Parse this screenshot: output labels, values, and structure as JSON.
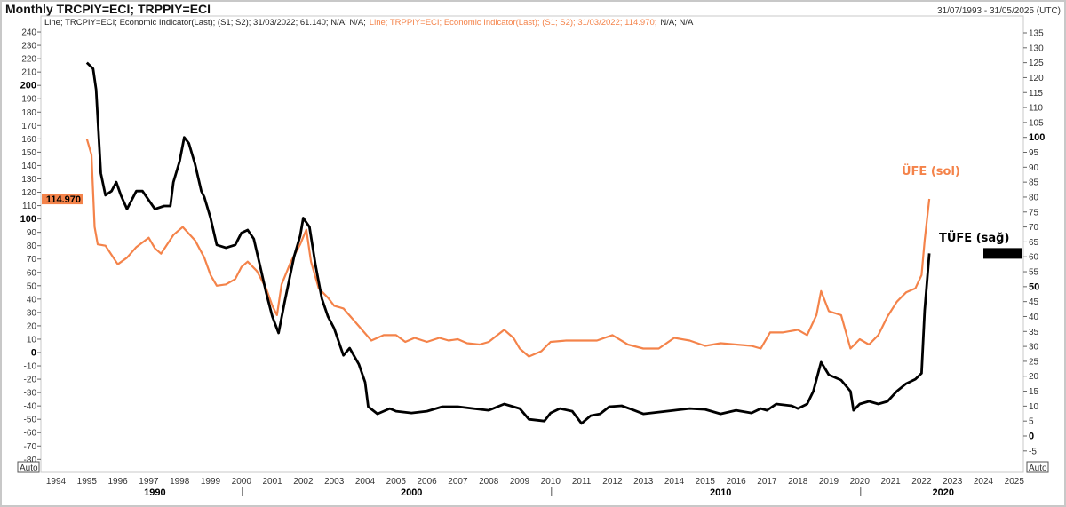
{
  "header": {
    "title": "Monthly TRCPIY=ECI; TRPPIY=ECI",
    "date_range": "31/07/1993 - 31/05/2025 (UTC)"
  },
  "legend": {
    "black_text": "Line; TRCPIY=ECI; Economic Indicator(Last); (S1; S2); 31/03/2022; 61.140; N/A; N/A;",
    "orange_text": "Line; TRPPIY=ECI; Economic Indicator(Last); (S1; S2); 31/03/2022; 114.970;",
    "tail_text": "N/A; N/A"
  },
  "auto_left": "Auto",
  "auto_right": "Auto",
  "colors": {
    "ufe": "#f4834a",
    "tufe": "#000000",
    "grid_border": "#c8c8c8"
  },
  "chart_data": {
    "type": "line",
    "title": "Monthly TRCPIY=ECI; TRPPIY=ECI",
    "xlim": [
      1994,
      2025
    ],
    "x_ticks": [
      "1994",
      "1995",
      "1996",
      "1997",
      "1998",
      "1999",
      "2000",
      "2001",
      "2002",
      "2003",
      "2004",
      "2005",
      "2006",
      "2007",
      "2008",
      "2009",
      "2010",
      "2011",
      "2012",
      "2013",
      "2014",
      "2015",
      "2016",
      "2017",
      "2018",
      "2019",
      "2020",
      "2021",
      "2022",
      "2023",
      "2024",
      "2025"
    ],
    "decade_labels": [
      "1990",
      "2000",
      "2010",
      "2020"
    ],
    "left_axis": {
      "ylim": [
        -80,
        240
      ],
      "ticks": [
        240,
        230,
        220,
        210,
        200,
        190,
        180,
        170,
        160,
        150,
        140,
        130,
        120,
        110,
        100,
        90,
        80,
        70,
        60,
        50,
        40,
        30,
        20,
        10,
        0,
        -10,
        -20,
        -30,
        -40,
        -50,
        -60,
        -70,
        -80
      ],
      "bold": [
        200,
        100,
        0
      ],
      "last_value_label": "114.970"
    },
    "right_axis": {
      "ylim": [
        -8,
        137
      ],
      "ticks": [
        135,
        130,
        125,
        120,
        115,
        110,
        105,
        100,
        95,
        90,
        85,
        80,
        75,
        70,
        65,
        60,
        55,
        50,
        45,
        40,
        35,
        30,
        25,
        20,
        15,
        10,
        5,
        0,
        -5
      ],
      "bold": [
        100,
        50,
        0
      ],
      "last_value_label": "61.140"
    },
    "series": [
      {
        "name": "ÜFE (sol)",
        "axis": "left",
        "color": "#f4834a",
        "points": [
          [
            1995.0,
            160
          ],
          [
            1995.15,
            148
          ],
          [
            1995.25,
            94
          ],
          [
            1995.35,
            81
          ],
          [
            1995.6,
            80
          ],
          [
            1996.0,
            66
          ],
          [
            1996.3,
            71
          ],
          [
            1996.6,
            79
          ],
          [
            1997.0,
            86
          ],
          [
            1997.2,
            78
          ],
          [
            1997.4,
            74
          ],
          [
            1997.8,
            88
          ],
          [
            1998.1,
            94
          ],
          [
            1998.5,
            84
          ],
          [
            1998.8,
            71
          ],
          [
            1999.0,
            58
          ],
          [
            1999.2,
            50
          ],
          [
            1999.5,
            51
          ],
          [
            1999.8,
            55
          ],
          [
            2000.0,
            64
          ],
          [
            2000.2,
            68
          ],
          [
            2000.5,
            61
          ],
          [
            2000.8,
            48
          ],
          [
            2001.0,
            35
          ],
          [
            2001.15,
            28
          ],
          [
            2001.3,
            51
          ],
          [
            2001.6,
            68
          ],
          [
            2001.9,
            81
          ],
          [
            2002.1,
            92
          ],
          [
            2002.25,
            68
          ],
          [
            2002.5,
            48
          ],
          [
            2002.8,
            41
          ],
          [
            2003.0,
            35
          ],
          [
            2003.3,
            33
          ],
          [
            2003.6,
            25
          ],
          [
            2003.9,
            17
          ],
          [
            2004.2,
            9
          ],
          [
            2004.6,
            13
          ],
          [
            2005.0,
            13
          ],
          [
            2005.3,
            8
          ],
          [
            2005.6,
            11
          ],
          [
            2006.0,
            8
          ],
          [
            2006.4,
            11
          ],
          [
            2006.7,
            9
          ],
          [
            2007.0,
            10
          ],
          [
            2007.3,
            7
          ],
          [
            2007.7,
            6
          ],
          [
            2008.0,
            8
          ],
          [
            2008.5,
            17
          ],
          [
            2008.8,
            11
          ],
          [
            2009.0,
            3
          ],
          [
            2009.3,
            -3
          ],
          [
            2009.7,
            1
          ],
          [
            2010.0,
            8
          ],
          [
            2010.5,
            9
          ],
          [
            2011.0,
            9
          ],
          [
            2011.5,
            9
          ],
          [
            2012.0,
            13
          ],
          [
            2012.5,
            6
          ],
          [
            2013.0,
            3
          ],
          [
            2013.5,
            3
          ],
          [
            2014.0,
            11
          ],
          [
            2014.5,
            9
          ],
          [
            2015.0,
            5
          ],
          [
            2015.5,
            7
          ],
          [
            2016.0,
            6
          ],
          [
            2016.5,
            5
          ],
          [
            2016.8,
            3
          ],
          [
            2017.1,
            15
          ],
          [
            2017.5,
            15
          ],
          [
            2018.0,
            17
          ],
          [
            2018.3,
            13
          ],
          [
            2018.6,
            28
          ],
          [
            2018.75,
            46
          ],
          [
            2019.0,
            31
          ],
          [
            2019.4,
            28
          ],
          [
            2019.7,
            3
          ],
          [
            2020.0,
            10
          ],
          [
            2020.3,
            6
          ],
          [
            2020.6,
            13
          ],
          [
            2020.9,
            27
          ],
          [
            2021.2,
            38
          ],
          [
            2021.5,
            45
          ],
          [
            2021.8,
            48
          ],
          [
            2022.0,
            58
          ],
          [
            2022.1,
            84
          ],
          [
            2022.25,
            115
          ]
        ]
      },
      {
        "name": "TÜFE (sağ)",
        "axis": "right",
        "color": "#000000",
        "points": [
          [
            1995.0,
            125
          ],
          [
            1995.2,
            123
          ],
          [
            1995.3,
            116
          ],
          [
            1995.45,
            88
          ],
          [
            1995.6,
            80.6
          ],
          [
            1995.8,
            82
          ],
          [
            1995.95,
            85
          ],
          [
            1996.1,
            80.6
          ],
          [
            1996.3,
            76
          ],
          [
            1996.6,
            82
          ],
          [
            1996.8,
            82
          ],
          [
            1997.0,
            79
          ],
          [
            1997.2,
            76
          ],
          [
            1997.5,
            77
          ],
          [
            1997.7,
            77
          ],
          [
            1997.8,
            85
          ],
          [
            1998.0,
            92
          ],
          [
            1998.15,
            100
          ],
          [
            1998.3,
            98
          ],
          [
            1998.5,
            91
          ],
          [
            1998.7,
            82
          ],
          [
            1998.8,
            80
          ],
          [
            1999.0,
            73
          ],
          [
            1999.2,
            64
          ],
          [
            1999.5,
            63
          ],
          [
            1999.8,
            64
          ],
          [
            2000.0,
            68
          ],
          [
            2000.2,
            69
          ],
          [
            2000.4,
            66
          ],
          [
            2000.6,
            57
          ],
          [
            2000.8,
            48
          ],
          [
            2001.0,
            40
          ],
          [
            2001.2,
            34.5
          ],
          [
            2001.4,
            45
          ],
          [
            2001.7,
            60
          ],
          [
            2001.9,
            67
          ],
          [
            2002.0,
            73
          ],
          [
            2002.2,
            70
          ],
          [
            2002.4,
            57
          ],
          [
            2002.6,
            46
          ],
          [
            2002.8,
            40
          ],
          [
            2003.0,
            36
          ],
          [
            2003.3,
            27
          ],
          [
            2003.5,
            29.4
          ],
          [
            2003.8,
            24
          ],
          [
            2004.0,
            18
          ],
          [
            2004.1,
            9.8
          ],
          [
            2004.4,
            7.4
          ],
          [
            2004.8,
            9.2
          ],
          [
            2005.0,
            8.3
          ],
          [
            2005.5,
            7.7
          ],
          [
            2006.0,
            8.3
          ],
          [
            2006.5,
            9.8
          ],
          [
            2007.0,
            9.8
          ],
          [
            2007.5,
            9.2
          ],
          [
            2008.0,
            8.6
          ],
          [
            2008.5,
            10.7
          ],
          [
            2009.0,
            9.2
          ],
          [
            2009.3,
            5.6
          ],
          [
            2009.8,
            5
          ],
          [
            2010.0,
            7.7
          ],
          [
            2010.3,
            9.2
          ],
          [
            2010.7,
            8.3
          ],
          [
            2011.0,
            4.2
          ],
          [
            2011.3,
            6.8
          ],
          [
            2011.6,
            7.4
          ],
          [
            2011.9,
            9.8
          ],
          [
            2012.3,
            10.1
          ],
          [
            2012.7,
            8.6
          ],
          [
            2013.0,
            7.4
          ],
          [
            2013.5,
            8
          ],
          [
            2014.0,
            8.6
          ],
          [
            2014.5,
            9.2
          ],
          [
            2015.0,
            8.9
          ],
          [
            2015.5,
            7.4
          ],
          [
            2016.0,
            8.6
          ],
          [
            2016.5,
            7.7
          ],
          [
            2016.8,
            9.2
          ],
          [
            2017.0,
            8.6
          ],
          [
            2017.3,
            10.7
          ],
          [
            2017.8,
            10.1
          ],
          [
            2018.0,
            9.2
          ],
          [
            2018.3,
            10.7
          ],
          [
            2018.5,
            15
          ],
          [
            2018.75,
            24.7
          ],
          [
            2019.0,
            20.5
          ],
          [
            2019.4,
            18.7
          ],
          [
            2019.7,
            15
          ],
          [
            2019.8,
            8.6
          ],
          [
            2020.0,
            10.7
          ],
          [
            2020.3,
            11.6
          ],
          [
            2020.6,
            10.7
          ],
          [
            2020.9,
            11.6
          ],
          [
            2021.2,
            15
          ],
          [
            2021.5,
            17.5
          ],
          [
            2021.8,
            19
          ],
          [
            2022.0,
            21
          ],
          [
            2022.1,
            42
          ],
          [
            2022.25,
            61.14
          ]
        ]
      }
    ],
    "annotations": [
      "ÜFE (sol)",
      "TÜFE (sağ)"
    ]
  }
}
